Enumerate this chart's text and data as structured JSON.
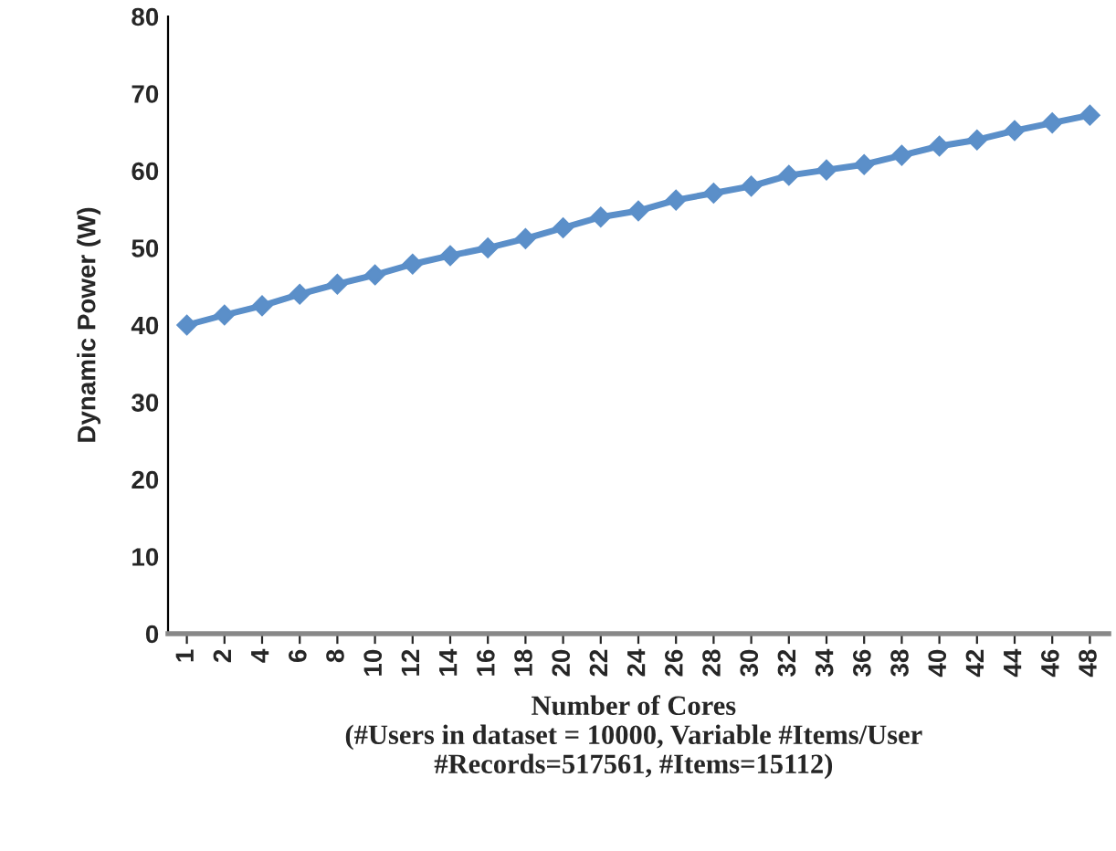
{
  "chart_data": {
    "type": "line",
    "xlabel": "Number of Cores\n(#Users in dataset = 10000, Variable #Items/User\n#Records=517561, #Items=15112)",
    "ylabel": "Dynamic Power (W)",
    "categories": [
      "1",
      "2",
      "4",
      "6",
      "8",
      "10",
      "12",
      "14",
      "16",
      "18",
      "20",
      "22",
      "24",
      "26",
      "28",
      "30",
      "32",
      "34",
      "36",
      "38",
      "40",
      "42",
      "44",
      "46",
      "48"
    ],
    "series": [
      {
        "color": "#5b8fc9",
        "values": [
          40,
          41.3,
          42.5,
          44,
          45.3,
          46.5,
          47.9,
          49,
          50,
          51.2,
          52.6,
          54,
          54.8,
          56.2,
          57.1,
          58,
          59.4,
          60.1,
          60.8,
          62,
          63.2,
          64,
          65.2,
          66.2,
          67.2
        ]
      }
    ],
    "ylim": [
      0,
      80
    ],
    "yticks": [
      0,
      10,
      20,
      30,
      40,
      50,
      60,
      70,
      80
    ],
    "grid": false,
    "marker": "diamond",
    "line_style": "solid"
  }
}
